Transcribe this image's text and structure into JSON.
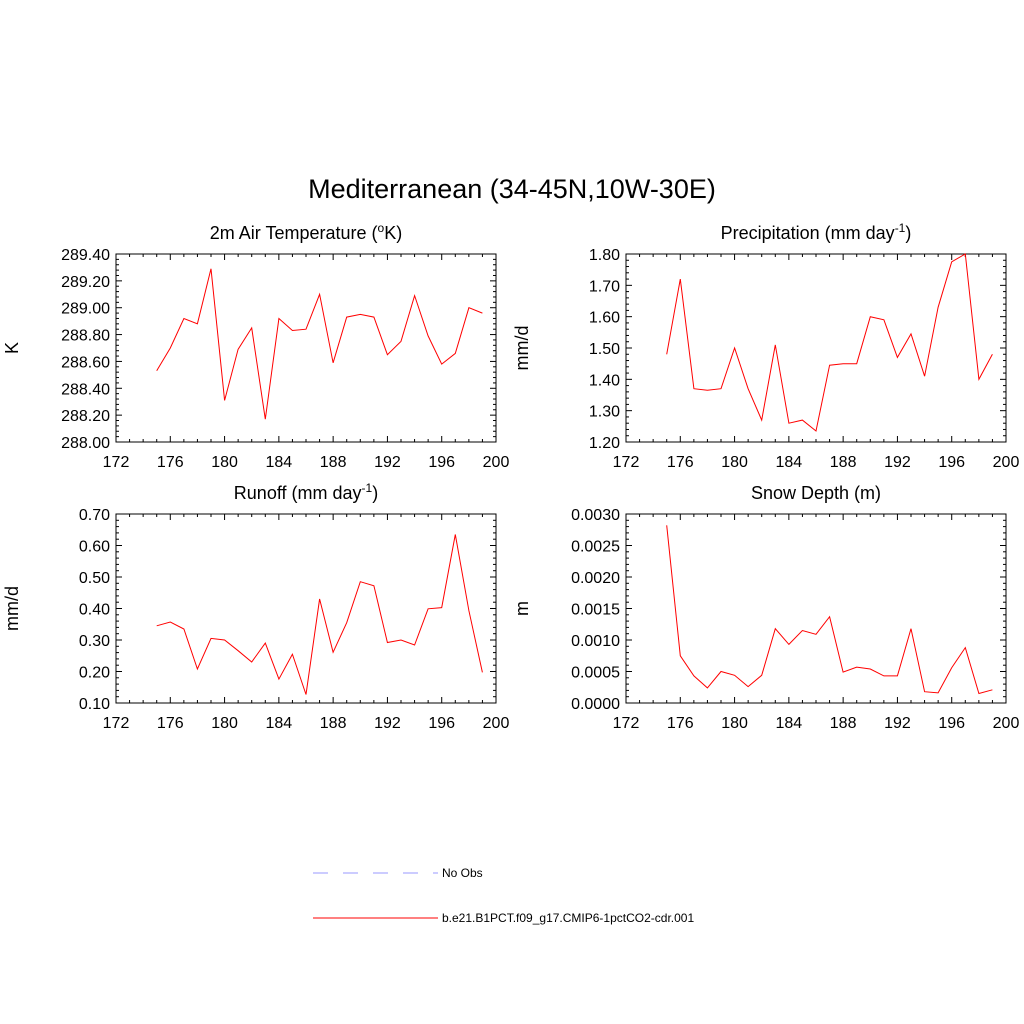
{
  "figure_title": "Mediterranean (34-45N,10W-30E)",
  "legend": {
    "items": [
      {
        "label": "No Obs",
        "color": "#9999ff",
        "dash": true
      },
      {
        "label": "b.e21.B1PCT.f09_g17.CMIP6-1pctCO2-cdr.001",
        "color": "#ff0000",
        "dash": false
      }
    ]
  },
  "chart_data": [
    {
      "type": "line",
      "title": "2m Air Temperature (",
      "title_sup": "o",
      "title_after": "K)",
      "ylabel": "K",
      "xlim": [
        172,
        200
      ],
      "ylim": [
        288.0,
        289.4
      ],
      "xticks": [
        172,
        176,
        180,
        184,
        188,
        192,
        196,
        200
      ],
      "yticks": [
        "288.00",
        "288.20",
        "288.40",
        "288.60",
        "288.80",
        "289.00",
        "289.20",
        "289.40"
      ],
      "ytick_values": [
        288.0,
        288.2,
        288.4,
        288.6,
        288.8,
        289.0,
        289.2,
        289.4
      ],
      "color": "#ff0000",
      "x": [
        175,
        176,
        177,
        178,
        179,
        180,
        181,
        182,
        183,
        184,
        185,
        186,
        187,
        188,
        189,
        190,
        191,
        192,
        193,
        194,
        195,
        196,
        197,
        198,
        199
      ],
      "y": [
        288.53,
        288.7,
        288.92,
        288.88,
        289.29,
        288.31,
        288.69,
        288.85,
        288.17,
        288.92,
        288.83,
        288.84,
        289.1,
        288.59,
        288.93,
        288.95,
        288.93,
        288.65,
        288.75,
        289.09,
        288.79,
        288.58,
        288.66,
        289.0,
        288.96
      ]
    },
    {
      "type": "line",
      "title": "Precipitation (mm day",
      "title_sup": "-1",
      "title_after": ")",
      "ylabel": "mm/d",
      "xlim": [
        172,
        200
      ],
      "ylim": [
        1.2,
        1.8
      ],
      "xticks": [
        172,
        176,
        180,
        184,
        188,
        192,
        196,
        200
      ],
      "yticks": [
        "1.20",
        "1.30",
        "1.40",
        "1.50",
        "1.60",
        "1.70",
        "1.80"
      ],
      "ytick_values": [
        1.2,
        1.3,
        1.4,
        1.5,
        1.6,
        1.7,
        1.8
      ],
      "color": "#ff0000",
      "x": [
        175,
        176,
        177,
        178,
        179,
        180,
        181,
        182,
        183,
        184,
        185,
        186,
        187,
        188,
        189,
        190,
        191,
        192,
        193,
        194,
        195,
        196,
        197,
        198,
        199
      ],
      "y": [
        1.48,
        1.72,
        1.37,
        1.365,
        1.37,
        1.5,
        1.37,
        1.27,
        1.51,
        1.26,
        1.27,
        1.235,
        1.445,
        1.45,
        1.45,
        1.6,
        1.59,
        1.47,
        1.545,
        1.41,
        1.63,
        1.775,
        1.8,
        1.4,
        1.48
      ]
    },
    {
      "type": "line",
      "title": "Runoff (mm day",
      "title_sup": "-1",
      "title_after": ")",
      "ylabel": "mm/d",
      "xlim": [
        172,
        200
      ],
      "ylim": [
        0.1,
        0.7
      ],
      "xticks": [
        172,
        176,
        180,
        184,
        188,
        192,
        196,
        200
      ],
      "yticks": [
        "0.10",
        "0.20",
        "0.30",
        "0.40",
        "0.50",
        "0.60",
        "0.70"
      ],
      "ytick_values": [
        0.1,
        0.2,
        0.3,
        0.4,
        0.5,
        0.6,
        0.7
      ],
      "color": "#ff0000",
      "x": [
        175,
        176,
        177,
        178,
        179,
        180,
        181,
        182,
        183,
        184,
        185,
        186,
        187,
        188,
        189,
        190,
        191,
        192,
        193,
        194,
        195,
        196,
        197,
        198,
        199
      ],
      "y": [
        0.345,
        0.357,
        0.335,
        0.208,
        0.305,
        0.3,
        0.266,
        0.23,
        0.29,
        0.176,
        0.255,
        0.127,
        0.43,
        0.261,
        0.355,
        0.485,
        0.472,
        0.292,
        0.3,
        0.284,
        0.399,
        0.403,
        0.635,
        0.393,
        0.197
      ]
    },
    {
      "type": "line",
      "title": "Snow Depth (m)",
      "title_sup": "",
      "title_after": "",
      "ylabel": "m",
      "xlim": [
        172,
        200
      ],
      "ylim": [
        0.0,
        0.003
      ],
      "xticks": [
        172,
        176,
        180,
        184,
        188,
        192,
        196,
        200
      ],
      "yticks": [
        "0.0000",
        "0.0005",
        "0.0010",
        "0.0015",
        "0.0020",
        "0.0025",
        "0.0030"
      ],
      "ytick_values": [
        0.0,
        0.0005,
        0.001,
        0.0015,
        0.002,
        0.0025,
        0.003
      ],
      "color": "#ff0000",
      "x": [
        175,
        176,
        177,
        178,
        179,
        180,
        181,
        182,
        183,
        184,
        185,
        186,
        187,
        188,
        189,
        190,
        191,
        192,
        193,
        194,
        195,
        196,
        197,
        198,
        199
      ],
      "y": [
        0.00282,
        0.00075,
        0.00043,
        0.00024,
        0.0005,
        0.00044,
        0.00026,
        0.00044,
        0.00118,
        0.00093,
        0.00115,
        0.00109,
        0.00137,
        0.00049,
        0.00057,
        0.00054,
        0.00043,
        0.00043,
        0.00118,
        0.00018,
        0.00016,
        0.00056,
        0.00088,
        0.00015,
        0.00021
      ]
    }
  ]
}
